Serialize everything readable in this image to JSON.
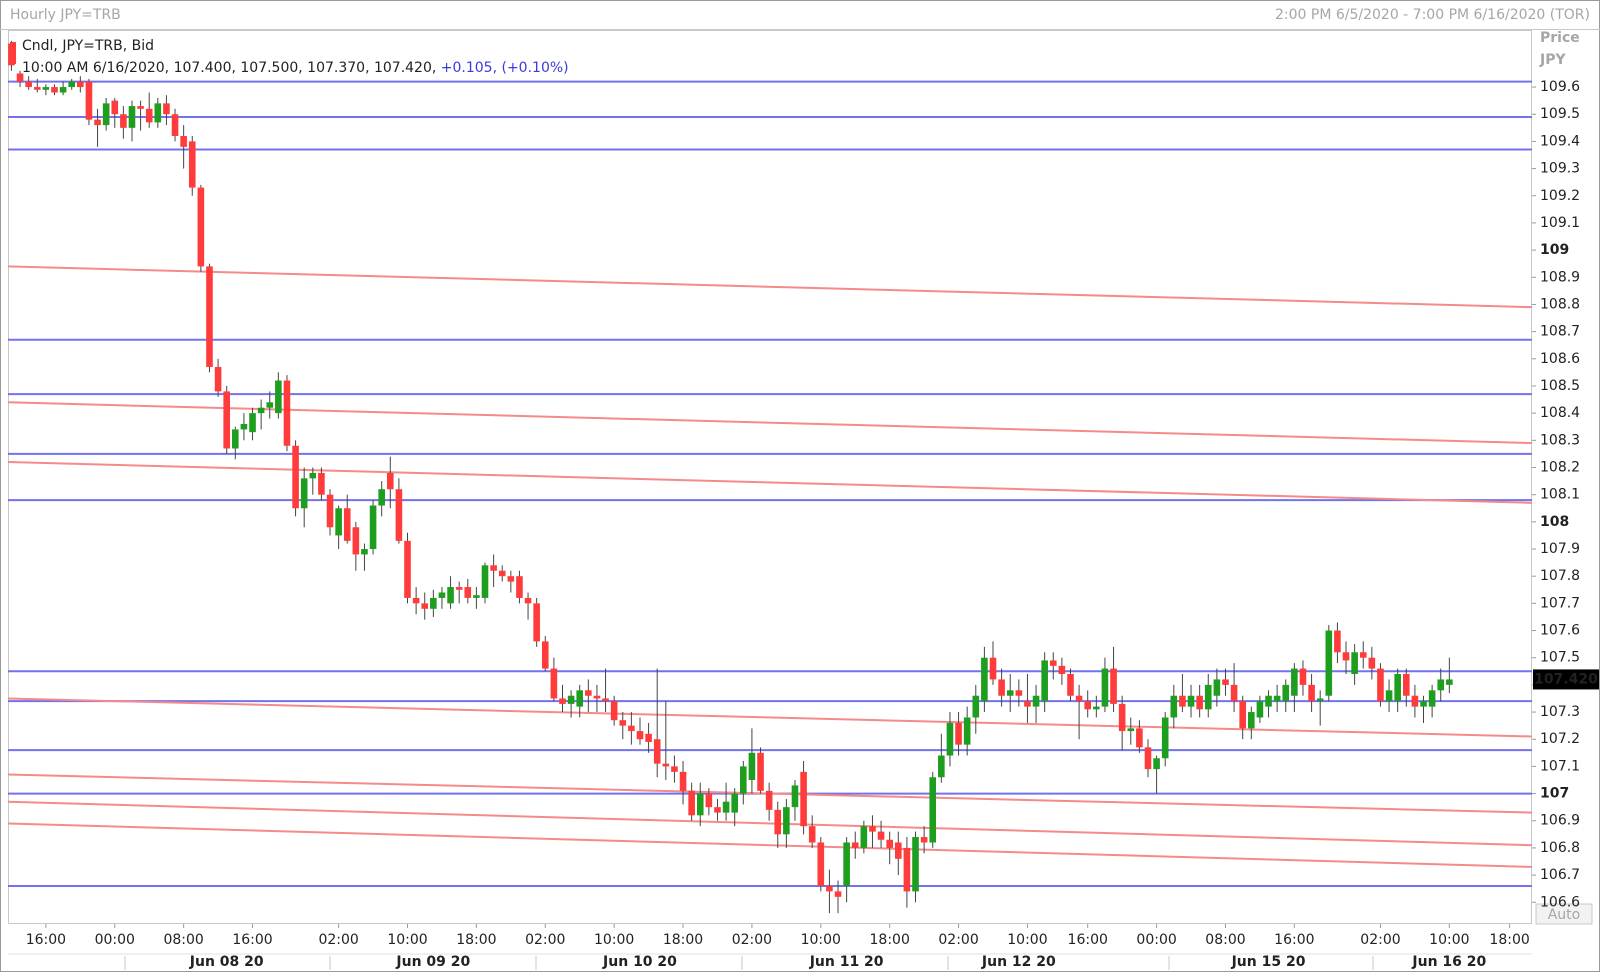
{
  "chart_data": {
    "type": "candlestick",
    "title": "Hourly JPY=TRB",
    "date_range": "2:00 PM 6/5/2020 - 7:00 PM 6/16/2020 (TOR)",
    "legend_name": "Cndl, JPY=TRB, Bid",
    "info_line": "10:00 AM 6/16/2020, 107.400, 107.500, 107.370, 107.420,",
    "change": "+0.105,",
    "change_pct": "(+0.10%)",
    "axis_title": "Price",
    "axis_unit": "JPY",
    "scale_button": "Auto",
    "up_color": "#1e9e1e",
    "down_color": "#ff3b3b",
    "ylim": [
      106.52,
      109.81
    ],
    "yticks": [
      106.6,
      106.7,
      106.8,
      106.9,
      107,
      107.1,
      107.2,
      107.3,
      107.4,
      107.5,
      107.6,
      107.7,
      107.8,
      107.9,
      108,
      108.1,
      108.2,
      108.3,
      108.4,
      108.5,
      108.6,
      108.7,
      108.8,
      108.9,
      109,
      109.1,
      109.2,
      109.3,
      109.4,
      109.5,
      109.6
    ],
    "xlim": [
      -0.4,
      176.6
    ],
    "xticks": [
      {
        "value": 4,
        "label": "16:00"
      },
      {
        "value": 12,
        "label": "00:00"
      },
      {
        "value": 20,
        "label": "08:00"
      },
      {
        "value": 28,
        "label": "16:00"
      },
      {
        "value": 38,
        "label": "02:00"
      },
      {
        "value": 46,
        "label": "10:00"
      },
      {
        "value": 54,
        "label": "18:00"
      },
      {
        "value": 62,
        "label": "02:00"
      },
      {
        "value": 70,
        "label": "10:00"
      },
      {
        "value": 78,
        "label": "18:00"
      },
      {
        "value": 86,
        "label": "02:00"
      },
      {
        "value": 94,
        "label": "10:00"
      },
      {
        "value": 102,
        "label": "18:00"
      },
      {
        "value": 110,
        "label": "02:00"
      },
      {
        "value": 118,
        "label": "10:00"
      },
      {
        "value": 125,
        "label": "16:00"
      },
      {
        "value": 133,
        "label": "00:00"
      },
      {
        "value": 141,
        "label": "08:00"
      },
      {
        "value": 149,
        "label": "16:00"
      },
      {
        "value": 159,
        "label": "02:00"
      },
      {
        "value": 167,
        "label": "10:00"
      },
      {
        "value": 174,
        "label": "18:00"
      }
    ],
    "date_labels": [
      {
        "value": 25,
        "label": "Jun 08 20"
      },
      {
        "value": 49,
        "label": "Jun 09 20"
      },
      {
        "value": 73,
        "label": "Jun 10 20"
      },
      {
        "value": 97,
        "label": "Jun 11 20"
      },
      {
        "value": 117,
        "label": "Jun 12 20"
      },
      {
        "value": 146,
        "label": "Jun 15 20"
      },
      {
        "value": 167,
        "label": "Jun 16 20"
      }
    ],
    "last_price": {
      "value": 107.42,
      "label": "107.420"
    },
    "hlines": {
      "color": "#7272ee",
      "values": [
        109.62,
        109.49,
        109.37,
        108.67,
        108.47,
        108.25,
        108.08,
        107.45,
        107.34,
        107.16,
        107.0,
        106.66
      ]
    },
    "trendlines": {
      "color": "#f48a8a",
      "lines": [
        [
          108.94,
          108.79
        ],
        [
          108.44,
          108.29
        ],
        [
          108.22,
          108.07
        ],
        [
          107.35,
          107.21
        ],
        [
          107.07,
          106.93
        ],
        [
          106.97,
          106.81
        ],
        [
          106.89,
          106.73
        ]
      ]
    },
    "candles": [
      [
        109.76,
        109.77,
        109.66,
        109.68
      ],
      [
        109.65,
        109.66,
        109.6,
        109.62
      ],
      [
        109.62,
        109.64,
        109.59,
        109.6
      ],
      [
        109.6,
        109.63,
        109.58,
        109.59
      ],
      [
        109.59,
        109.61,
        109.57,
        109.6
      ],
      [
        109.6,
        109.61,
        109.57,
        109.58
      ],
      [
        109.58,
        109.62,
        109.57,
        109.6
      ],
      [
        109.6,
        109.63,
        109.59,
        109.62
      ],
      [
        109.62,
        109.64,
        109.58,
        109.6
      ],
      [
        109.62,
        109.63,
        109.46,
        109.48
      ],
      [
        109.48,
        109.52,
        109.38,
        109.46
      ],
      [
        109.46,
        109.56,
        109.44,
        109.54
      ],
      [
        109.55,
        109.56,
        109.45,
        109.5
      ],
      [
        109.5,
        109.53,
        109.41,
        109.45
      ],
      [
        109.45,
        109.55,
        109.4,
        109.53
      ],
      [
        109.53,
        109.55,
        109.44,
        109.52
      ],
      [
        109.52,
        109.58,
        109.45,
        109.47
      ],
      [
        109.47,
        109.56,
        109.45,
        109.54
      ],
      [
        109.54,
        109.57,
        109.46,
        109.5
      ],
      [
        109.5,
        109.52,
        109.4,
        109.42
      ],
      [
        109.42,
        109.46,
        109.3,
        109.38
      ],
      [
        109.4,
        109.42,
        109.2,
        109.23
      ],
      [
        109.23,
        109.24,
        108.92,
        108.94
      ],
      [
        108.94,
        108.95,
        108.55,
        108.57
      ],
      [
        108.57,
        108.6,
        108.46,
        108.48
      ],
      [
        108.48,
        108.5,
        108.25,
        108.27
      ],
      [
        108.27,
        108.35,
        108.23,
        108.34
      ],
      [
        108.34,
        108.4,
        108.3,
        108.36
      ],
      [
        108.33,
        108.42,
        108.3,
        108.4
      ],
      [
        108.4,
        108.45,
        108.34,
        108.42
      ],
      [
        108.42,
        108.48,
        108.38,
        108.44
      ],
      [
        108.4,
        108.55,
        108.38,
        108.52
      ],
      [
        108.52,
        108.54,
        108.26,
        108.28
      ],
      [
        108.28,
        108.3,
        108.02,
        108.05
      ],
      [
        108.05,
        108.2,
        107.98,
        108.16
      ],
      [
        108.16,
        108.2,
        108.1,
        108.18
      ],
      [
        108.18,
        108.2,
        108.08,
        108.1
      ],
      [
        108.1,
        108.12,
        107.95,
        107.98
      ],
      [
        107.95,
        108.06,
        107.9,
        108.05
      ],
      [
        108.05,
        108.1,
        107.92,
        107.93
      ],
      [
        107.98,
        108.0,
        107.82,
        107.88
      ],
      [
        107.88,
        107.92,
        107.82,
        107.9
      ],
      [
        107.9,
        108.08,
        107.88,
        108.06
      ],
      [
        108.06,
        108.15,
        108.02,
        108.12
      ],
      [
        108.18,
        108.24,
        108.05,
        108.12
      ],
      [
        108.12,
        108.16,
        107.92,
        107.93
      ],
      [
        107.93,
        107.96,
        107.7,
        107.72
      ],
      [
        107.72,
        107.76,
        107.66,
        107.7
      ],
      [
        107.7,
        107.74,
        107.64,
        107.68
      ],
      [
        107.68,
        107.75,
        107.65,
        107.72
      ],
      [
        107.72,
        107.76,
        107.68,
        107.74
      ],
      [
        107.7,
        107.8,
        107.68,
        107.76
      ],
      [
        107.76,
        107.78,
        107.7,
        107.75
      ],
      [
        107.76,
        107.79,
        107.7,
        107.72
      ],
      [
        107.72,
        107.76,
        107.68,
        107.73
      ],
      [
        107.72,
        107.85,
        107.7,
        107.84
      ],
      [
        107.84,
        107.88,
        107.76,
        107.82
      ],
      [
        107.82,
        107.84,
        107.78,
        107.8
      ],
      [
        107.8,
        107.82,
        107.74,
        107.78
      ],
      [
        107.8,
        107.82,
        107.7,
        107.72
      ],
      [
        107.72,
        107.74,
        107.64,
        107.7
      ],
      [
        107.7,
        107.72,
        107.54,
        107.56
      ],
      [
        107.56,
        107.58,
        107.45,
        107.46
      ],
      [
        107.46,
        107.5,
        107.34,
        107.35
      ],
      [
        107.35,
        107.4,
        107.3,
        107.33
      ],
      [
        107.33,
        107.38,
        107.28,
        107.36
      ],
      [
        107.32,
        107.4,
        107.28,
        107.38
      ],
      [
        107.38,
        107.42,
        107.3,
        107.36
      ],
      [
        107.36,
        107.4,
        107.3,
        107.35
      ],
      [
        107.35,
        107.46,
        107.3,
        107.34
      ],
      [
        107.34,
        107.36,
        107.25,
        107.27
      ],
      [
        107.27,
        107.3,
        107.2,
        107.25
      ],
      [
        107.25,
        107.3,
        107.18,
        107.23
      ],
      [
        107.23,
        107.28,
        107.18,
        107.2
      ],
      [
        107.22,
        107.26,
        107.15,
        107.19
      ],
      [
        107.2,
        107.46,
        107.06,
        107.11
      ],
      [
        107.11,
        107.34,
        107.05,
        107.1
      ],
      [
        107.1,
        107.14,
        107.04,
        107.08
      ],
      [
        107.08,
        107.12,
        106.96,
        107.01
      ],
      [
        107.01,
        107.04,
        106.9,
        106.92
      ],
      [
        106.92,
        107.04,
        106.88,
        107.0
      ],
      [
        107.0,
        107.02,
        106.92,
        106.95
      ],
      [
        106.95,
        106.98,
        106.9,
        106.93
      ],
      [
        106.93,
        107.04,
        106.9,
        106.97
      ],
      [
        106.93,
        107.02,
        106.88,
        107.0
      ],
      [
        107.0,
        107.12,
        106.96,
        107.1
      ],
      [
        107.05,
        107.24,
        107.0,
        107.15
      ],
      [
        107.15,
        107.17,
        107.0,
        107.01
      ],
      [
        107.01,
        107.04,
        106.9,
        106.94
      ],
      [
        106.94,
        106.97,
        106.8,
        106.85
      ],
      [
        106.85,
        106.98,
        106.8,
        106.95
      ],
      [
        106.95,
        107.05,
        106.9,
        107.03
      ],
      [
        107.08,
        107.12,
        106.85,
        106.88
      ],
      [
        106.88,
        106.92,
        106.8,
        106.82
      ],
      [
        106.82,
        106.84,
        106.64,
        106.66
      ],
      [
        106.66,
        106.72,
        106.56,
        106.64
      ],
      [
        106.64,
        106.68,
        106.56,
        106.62
      ],
      [
        106.66,
        106.84,
        106.6,
        106.82
      ],
      [
        106.82,
        106.86,
        106.76,
        106.8
      ],
      [
        106.8,
        106.9,
        106.78,
        106.88
      ],
      [
        106.88,
        106.92,
        106.8,
        106.86
      ],
      [
        106.86,
        106.9,
        106.8,
        106.83
      ],
      [
        106.83,
        106.86,
        106.74,
        106.8
      ],
      [
        106.82,
        106.86,
        106.7,
        106.76
      ],
      [
        106.8,
        106.84,
        106.58,
        106.64
      ],
      [
        106.64,
        106.86,
        106.6,
        106.84
      ],
      [
        106.84,
        106.88,
        106.78,
        106.82
      ],
      [
        106.82,
        107.08,
        106.8,
        107.06
      ],
      [
        107.06,
        107.22,
        107.04,
        107.14
      ],
      [
        107.14,
        107.3,
        107.1,
        107.26
      ],
      [
        107.26,
        107.3,
        107.14,
        107.18
      ],
      [
        107.18,
        107.32,
        107.14,
        107.28
      ],
      [
        107.28,
        107.4,
        107.22,
        107.36
      ],
      [
        107.34,
        107.54,
        107.3,
        107.5
      ],
      [
        107.5,
        107.56,
        107.4,
        107.42
      ],
      [
        107.42,
        107.46,
        107.32,
        107.36
      ],
      [
        107.36,
        107.44,
        107.3,
        107.38
      ],
      [
        107.38,
        107.42,
        107.32,
        107.36
      ],
      [
        107.34,
        107.44,
        107.26,
        107.32
      ],
      [
        107.32,
        107.4,
        107.26,
        107.36
      ],
      [
        107.34,
        107.52,
        107.3,
        107.49
      ],
      [
        107.49,
        107.52,
        107.42,
        107.47
      ],
      [
        107.47,
        107.5,
        107.4,
        107.44
      ],
      [
        107.44,
        107.46,
        107.34,
        107.36
      ],
      [
        107.36,
        107.4,
        107.2,
        107.34
      ],
      [
        107.34,
        107.38,
        107.28,
        107.31
      ],
      [
        107.31,
        107.36,
        107.28,
        107.32
      ],
      [
        107.32,
        107.5,
        107.3,
        107.46
      ],
      [
        107.46,
        107.54,
        107.3,
        107.33
      ],
      [
        107.33,
        107.36,
        107.16,
        107.23
      ],
      [
        107.23,
        107.28,
        107.18,
        107.24
      ],
      [
        107.24,
        107.27,
        107.15,
        107.17
      ],
      [
        107.17,
        107.2,
        107.06,
        107.09
      ],
      [
        107.09,
        107.14,
        107.0,
        107.13
      ],
      [
        107.13,
        107.3,
        107.1,
        107.28
      ],
      [
        107.28,
        107.4,
        107.24,
        107.36
      ],
      [
        107.36,
        107.44,
        107.3,
        107.32
      ],
      [
        107.32,
        107.4,
        107.28,
        107.36
      ],
      [
        107.36,
        107.4,
        107.28,
        107.31
      ],
      [
        107.31,
        107.44,
        107.28,
        107.4
      ],
      [
        107.36,
        107.46,
        107.32,
        107.42
      ],
      [
        107.42,
        107.46,
        107.36,
        107.4
      ],
      [
        107.4,
        107.48,
        107.3,
        107.34
      ],
      [
        107.34,
        107.36,
        107.2,
        107.24
      ],
      [
        107.24,
        107.32,
        107.2,
        107.3
      ],
      [
        107.28,
        107.36,
        107.26,
        107.34
      ],
      [
        107.32,
        107.38,
        107.28,
        107.36
      ],
      [
        107.34,
        107.4,
        107.3,
        107.36
      ],
      [
        107.34,
        107.42,
        107.3,
        107.4
      ],
      [
        107.36,
        107.48,
        107.3,
        107.46
      ],
      [
        107.46,
        107.49,
        107.36,
        107.4
      ],
      [
        107.4,
        107.44,
        107.3,
        107.34
      ],
      [
        107.34,
        107.38,
        107.25,
        107.35
      ],
      [
        107.36,
        107.62,
        107.34,
        107.6
      ],
      [
        107.6,
        107.63,
        107.48,
        107.52
      ],
      [
        107.52,
        107.56,
        107.44,
        107.49
      ],
      [
        107.44,
        107.55,
        107.4,
        107.52
      ],
      [
        107.52,
        107.56,
        107.46,
        107.5
      ],
      [
        107.5,
        107.54,
        107.42,
        107.46
      ],
      [
        107.46,
        107.48,
        107.32,
        107.34
      ],
      [
        107.34,
        107.42,
        107.3,
        107.38
      ],
      [
        107.34,
        107.46,
        107.3,
        107.44
      ],
      [
        107.44,
        107.46,
        107.32,
        107.36
      ],
      [
        107.36,
        107.4,
        107.28,
        107.32
      ],
      [
        107.32,
        107.36,
        107.26,
        107.34
      ],
      [
        107.32,
        107.4,
        107.28,
        107.38
      ],
      [
        107.38,
        107.46,
        107.34,
        107.42
      ],
      [
        107.4,
        107.5,
        107.37,
        107.42
      ]
    ]
  }
}
